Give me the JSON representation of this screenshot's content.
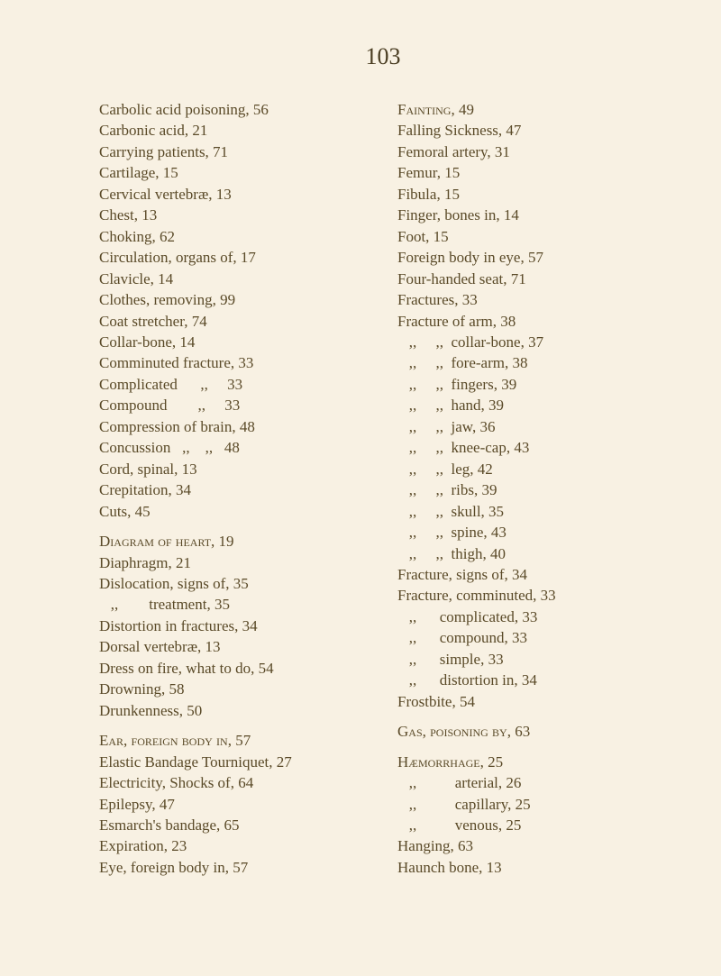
{
  "pageNumber": "103",
  "leftColumn": [
    {
      "text": "Carbolic acid poisoning, 56",
      "type": "entry"
    },
    {
      "text": "Carbonic acid, 21",
      "type": "entry"
    },
    {
      "text": "Carrying patients, 71",
      "type": "entry"
    },
    {
      "text": "Cartilage, 15",
      "type": "entry"
    },
    {
      "text": "Cervical vertebræ, 13",
      "type": "entry"
    },
    {
      "text": "Chest, 13",
      "type": "entry"
    },
    {
      "text": "Choking, 62",
      "type": "entry"
    },
    {
      "text": "Circulation, organs of, 17",
      "type": "entry"
    },
    {
      "text": "Clavicle, 14",
      "type": "entry"
    },
    {
      "text": "Clothes, removing, 99",
      "type": "entry"
    },
    {
      "text": "Coat stretcher, 74",
      "type": "entry"
    },
    {
      "text": "Collar-bone, 14",
      "type": "entry"
    },
    {
      "text": "Comminuted fracture, 33",
      "type": "entry"
    },
    {
      "text": "Complicated      ,,     33",
      "type": "entry"
    },
    {
      "text": "Compound        ,,     33",
      "type": "entry"
    },
    {
      "text": "Compression of brain, 48",
      "type": "entry"
    },
    {
      "text": "Concussion   ,,    ,,   48",
      "type": "entry"
    },
    {
      "text": "Cord, spinal, 13",
      "type": "entry"
    },
    {
      "text": "Crepitation, 34",
      "type": "entry"
    },
    {
      "text": "Cuts, 45",
      "type": "entry"
    },
    {
      "text": "",
      "type": "gap"
    },
    {
      "text": "Diagram of heart, 19",
      "type": "heading"
    },
    {
      "text": "Diaphragm, 21",
      "type": "entry"
    },
    {
      "text": "Dislocation, signs of, 35",
      "type": "entry"
    },
    {
      "text": "    ,,        treatment, 35",
      "type": "entry"
    },
    {
      "text": "Distortion in fractures, 34",
      "type": "entry"
    },
    {
      "text": "Dorsal vertebræ, 13",
      "type": "entry"
    },
    {
      "text": "Dress on fire, what to do, 54",
      "type": "entry"
    },
    {
      "text": "Drowning, 58",
      "type": "entry"
    },
    {
      "text": "Drunkenness, 50",
      "type": "entry"
    },
    {
      "text": "",
      "type": "gap"
    },
    {
      "text": "Ear, foreign body in, 57",
      "type": "heading"
    },
    {
      "text": "Elastic Bandage Tourniquet, 27",
      "type": "entry"
    },
    {
      "text": "Electricity, Shocks of, 64",
      "type": "entry"
    },
    {
      "text": "Epilepsy, 47",
      "type": "entry"
    },
    {
      "text": "Esmarch's bandage, 65",
      "type": "entry"
    },
    {
      "text": "Expiration, 23",
      "type": "entry"
    },
    {
      "text": "Eye, foreign body in, 57",
      "type": "entry"
    }
  ],
  "rightColumn": [
    {
      "text": "Fainting, 49",
      "type": "heading"
    },
    {
      "text": "Falling Sickness, 47",
      "type": "entry"
    },
    {
      "text": "Femoral artery, 31",
      "type": "entry"
    },
    {
      "text": "Femur, 15",
      "type": "entry"
    },
    {
      "text": "Fibula, 15",
      "type": "entry"
    },
    {
      "text": "Finger, bones in, 14",
      "type": "entry"
    },
    {
      "text": "Foot, 15",
      "type": "entry"
    },
    {
      "text": "Foreign body in eye, 57",
      "type": "entry"
    },
    {
      "text": "Four-handed seat, 71",
      "type": "entry"
    },
    {
      "text": "Fractures, 33",
      "type": "entry"
    },
    {
      "text": "Fracture of arm, 38",
      "type": "entry"
    },
    {
      "text": "    ,,     ,,  collar-bone, 37",
      "type": "entry"
    },
    {
      "text": "    ,,     ,,  fore-arm, 38",
      "type": "entry"
    },
    {
      "text": "    ,,     ,,  fingers, 39",
      "type": "entry"
    },
    {
      "text": "    ,,     ,,  hand, 39",
      "type": "entry"
    },
    {
      "text": "    ,,     ,,  jaw, 36",
      "type": "entry"
    },
    {
      "text": "    ,,     ,,  knee-cap, 43",
      "type": "entry"
    },
    {
      "text": "    ,,     ,,  leg, 42",
      "type": "entry"
    },
    {
      "text": "    ,,     ,,  ribs, 39",
      "type": "entry"
    },
    {
      "text": "    ,,     ,,  skull, 35",
      "type": "entry"
    },
    {
      "text": "    ,,     ,,  spine, 43",
      "type": "entry"
    },
    {
      "text": "    ,,     ,,  thigh, 40",
      "type": "entry"
    },
    {
      "text": "Fracture, signs of, 34",
      "type": "entry"
    },
    {
      "text": "Fracture, comminuted, 33",
      "type": "entry"
    },
    {
      "text": "    ,,      complicated, 33",
      "type": "entry"
    },
    {
      "text": "    ,,      compound, 33",
      "type": "entry"
    },
    {
      "text": "    ,,      simple, 33",
      "type": "entry"
    },
    {
      "text": "    ,,      distortion in, 34",
      "type": "entry"
    },
    {
      "text": "Frostbite, 54",
      "type": "entry"
    },
    {
      "text": "",
      "type": "gap"
    },
    {
      "text": "Gas, poisoning by, 63",
      "type": "heading"
    },
    {
      "text": "",
      "type": "gap"
    },
    {
      "text": "Hæmorrhage, 25",
      "type": "heading"
    },
    {
      "text": "    ,,          arterial, 26",
      "type": "entry"
    },
    {
      "text": "    ,,          capillary, 25",
      "type": "entry"
    },
    {
      "text": "    ,,          venous, 25",
      "type": "entry"
    },
    {
      "text": "Hanging, 63",
      "type": "entry"
    },
    {
      "text": "Haunch bone, 13",
      "type": "entry"
    }
  ]
}
